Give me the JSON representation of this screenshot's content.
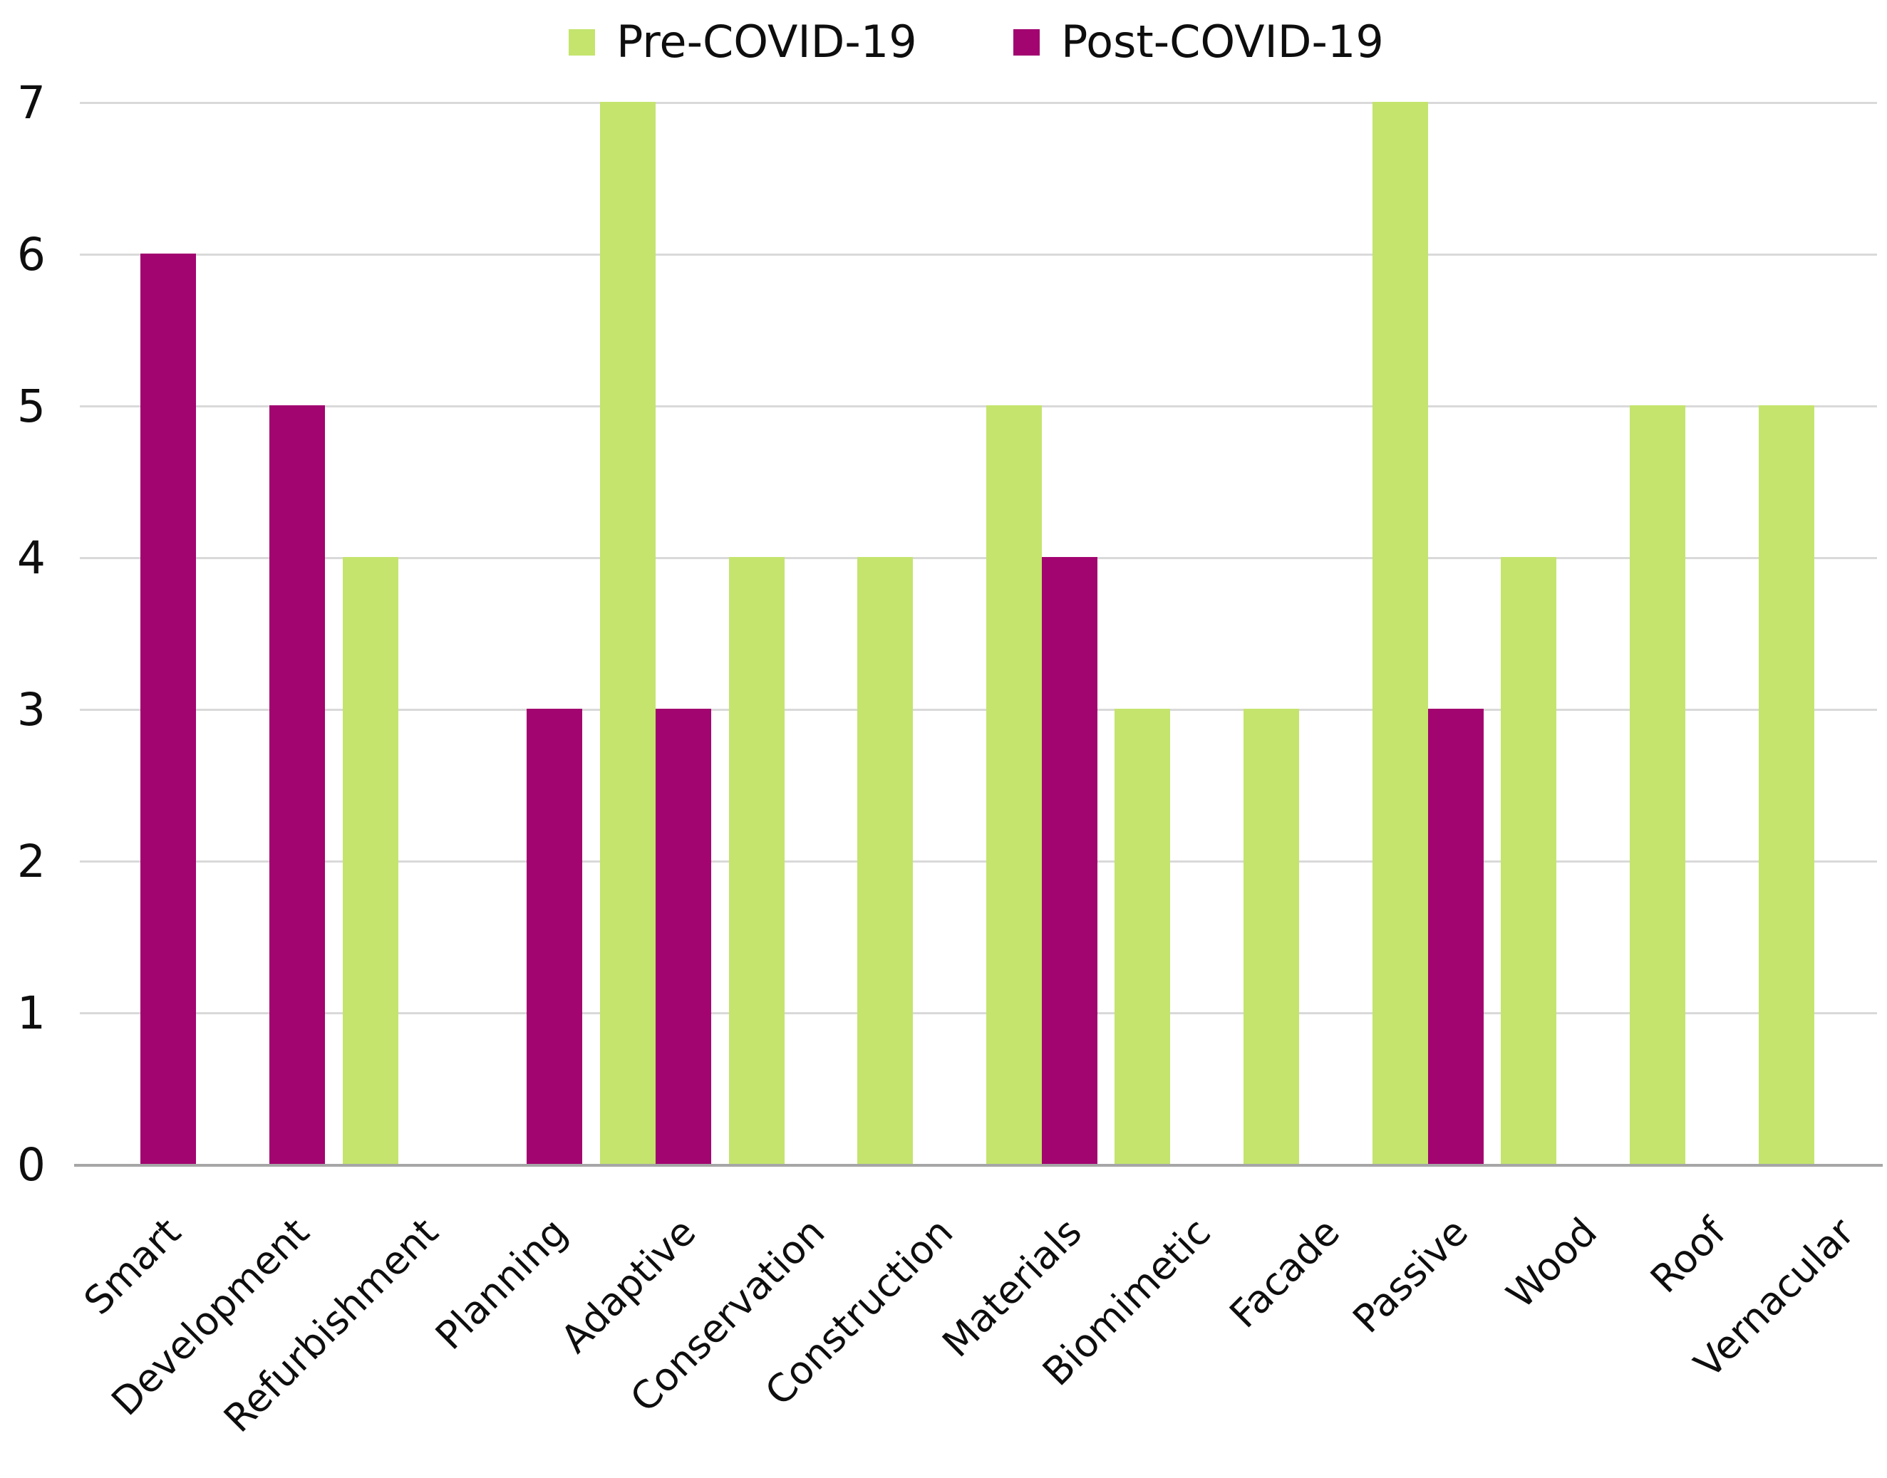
{
  "chart_data": {
    "type": "bar",
    "title": "",
    "xlabel": "",
    "ylabel": "",
    "categories": [
      "Smart",
      "Development",
      "Refurbishment",
      "Planning",
      "Adaptive",
      "Conservation",
      "Construction",
      "Materials",
      "Biomimetic",
      "Facade",
      "Passive",
      "Wood",
      "Roof",
      "Vernacular"
    ],
    "series": [
      {
        "name": "Pre-COVID-19",
        "color": "#c4e46d",
        "values": [
          0,
          0,
          4,
          0,
          7,
          4,
          4,
          5,
          3,
          3,
          7,
          4,
          5,
          5
        ]
      },
      {
        "name": "Post-COVID-19",
        "color": "#a20470",
        "values": [
          6,
          5,
          0,
          3,
          3,
          0,
          0,
          4,
          0,
          0,
          3,
          0,
          0,
          0
        ]
      }
    ],
    "yticks": [
      0,
      1,
      2,
      3,
      4,
      5,
      6,
      7
    ],
    "ylim": [
      0,
      7
    ],
    "grid": true,
    "legend_position": "top",
    "colors": {
      "gridline": "#d9d9d9",
      "axis_line": "#a6a6a6",
      "text": "#0e0e0e",
      "background": "#ffffff"
    }
  }
}
